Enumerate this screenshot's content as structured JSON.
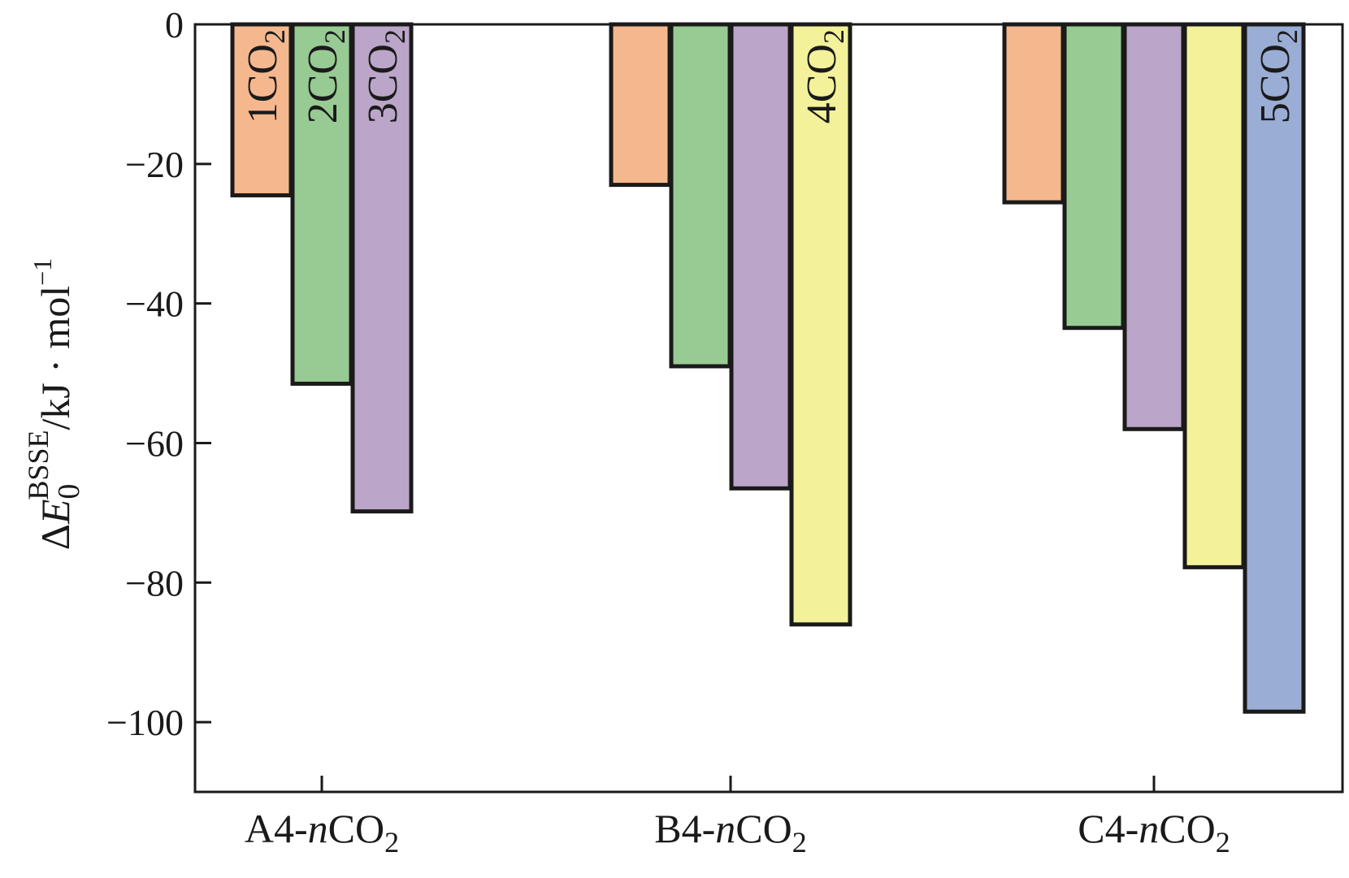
{
  "chart_data": {
    "type": "bar",
    "ylabel": {
      "delta": "Δ",
      "symbol": "E",
      "subscript": "0",
      "superscript": "BSSE",
      "unit": "/kJ · mol",
      "unit_exponent": "−1"
    },
    "ylim": [
      -110,
      0
    ],
    "yticks": [
      0,
      -20,
      -40,
      -60,
      -80,
      -100
    ],
    "ytick_labels": [
      "0",
      "−20",
      "−40",
      "−60",
      "−80",
      "−100"
    ],
    "grid": false,
    "legend": "none",
    "categories": [
      {
        "prefix": "A4-",
        "italic": "n",
        "main": "CO",
        "sub": "2"
      },
      {
        "prefix": "B4-",
        "italic": "n",
        "main": "CO",
        "sub": "2"
      },
      {
        "prefix": "C4-",
        "italic": "n",
        "main": "CO",
        "sub": "2"
      }
    ],
    "series": [
      {
        "name": "1CO2",
        "label_main": "1CO",
        "label_sub": "2",
        "color": "#F5B88E",
        "values": [
          -24.5,
          -23.0,
          -25.5
        ]
      },
      {
        "name": "2CO2",
        "label_main": "2CO",
        "label_sub": "2",
        "color": "#98CB93",
        "values": [
          -51.5,
          -49.0,
          -43.5
        ]
      },
      {
        "name": "3CO2",
        "label_main": "3CO",
        "label_sub": "2",
        "color": "#BBA5C8",
        "values": [
          -69.8,
          -66.5,
          -58.0
        ]
      },
      {
        "name": "4CO2",
        "label_main": "4CO",
        "label_sub": "2",
        "color": "#F3F29B",
        "values": [
          null,
          -86.0,
          -77.8
        ]
      },
      {
        "name": "5CO2",
        "label_main": "5CO",
        "label_sub": "2",
        "color": "#9AADD5",
        "values": [
          null,
          null,
          -98.5
        ]
      }
    ],
    "bar_labels": [
      {
        "series": 0,
        "category": 0
      },
      {
        "series": 1,
        "category": 0
      },
      {
        "series": 2,
        "category": 0
      },
      {
        "series": 3,
        "category": 1
      },
      {
        "series": 4,
        "category": 2
      }
    ]
  }
}
